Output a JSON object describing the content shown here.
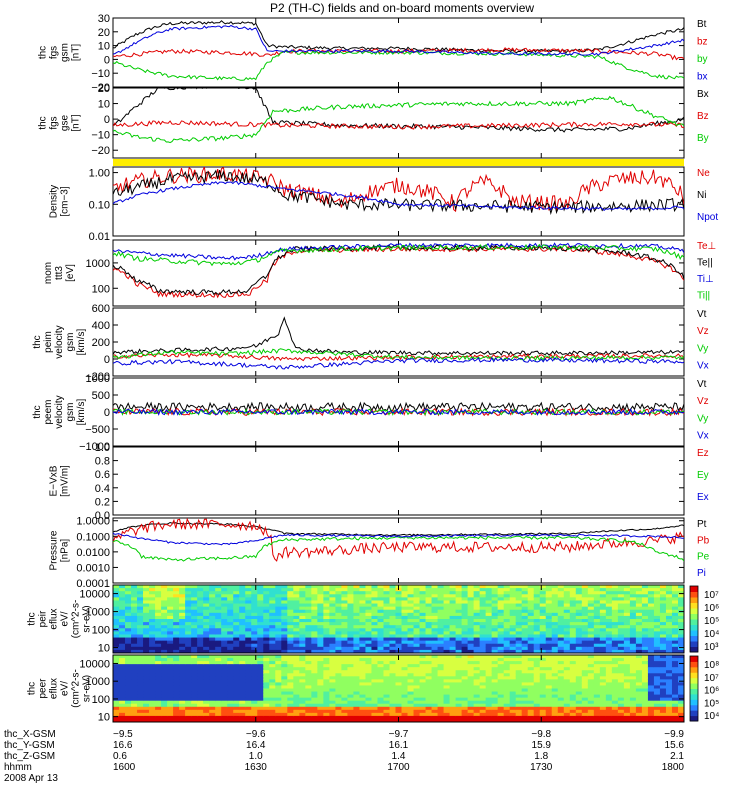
{
  "title": "P2 (TH-C) fields and on-board moments overview",
  "colors": {
    "black": "#000000",
    "red": "#e00000",
    "green": "#00cc00",
    "blue": "#0000dd",
    "yellow": "#ffee00"
  },
  "chart_data": [
    {
      "type": "line",
      "ylabel_lines": [
        "thc",
        "fgs",
        "gsm",
        "[nT]"
      ],
      "yticks": [
        "30",
        "20",
        "10",
        "0",
        "−10",
        "−20"
      ],
      "ylim": [
        -20,
        30
      ],
      "legend": [
        {
          "name": "Bt",
          "color": "#000000"
        },
        {
          "name": "bz",
          "color": "#e00000"
        },
        {
          "name": "by",
          "color": "#00cc00"
        },
        {
          "name": "bx",
          "color": "#0000dd"
        }
      ],
      "series": [
        {
          "name": "Bt",
          "color": "#000000",
          "x": [
            0,
            0.04,
            0.07,
            0.1,
            0.2,
            0.25,
            0.27,
            0.3,
            0.4,
            0.5,
            0.6,
            0.7,
            0.8,
            0.85,
            0.9,
            0.95,
            1
          ],
          "y": [
            8,
            18,
            23,
            26,
            27,
            26,
            10,
            9,
            8,
            8,
            7,
            6,
            6,
            7,
            12,
            18,
            22
          ],
          "noise": 1.2
        },
        {
          "name": "bz",
          "color": "#e00000",
          "x": [
            0,
            0.05,
            0.1,
            0.2,
            0.25,
            0.27,
            0.3,
            0.5,
            0.7,
            0.85,
            0.95,
            1
          ],
          "y": [
            2,
            4,
            6,
            5,
            4,
            3,
            6,
            6,
            7,
            6,
            4,
            0
          ],
          "noise": 1.5
        },
        {
          "name": "by",
          "color": "#00cc00",
          "x": [
            0,
            0.05,
            0.1,
            0.2,
            0.25,
            0.27,
            0.3,
            0.5,
            0.7,
            0.85,
            0.9,
            0.95,
            1
          ],
          "y": [
            -2,
            -8,
            -12,
            -14,
            -14,
            -2,
            5,
            5,
            4,
            2,
            -6,
            -12,
            -14
          ],
          "noise": 1.3
        },
        {
          "name": "bx",
          "color": "#0000dd",
          "x": [
            0,
            0.04,
            0.07,
            0.1,
            0.2,
            0.25,
            0.27,
            0.3,
            0.5,
            0.7,
            0.85,
            0.95,
            1
          ],
          "y": [
            3,
            12,
            18,
            22,
            24,
            22,
            6,
            6,
            6,
            4,
            4,
            10,
            14
          ],
          "noise": 1
        }
      ]
    },
    {
      "type": "line",
      "ylabel_lines": [
        "thc",
        "fgs",
        "gse",
        "[nT]"
      ],
      "yticks": [
        "20",
        "10",
        "0",
        "−10",
        "−20"
      ],
      "ylim": [
        -25,
        20
      ],
      "legend": [
        {
          "name": "Bx",
          "color": "#000000"
        },
        {
          "name": "Bz",
          "color": "#e00000"
        },
        {
          "name": "By",
          "color": "#00cc00"
        }
      ],
      "series": [
        {
          "name": "Bx",
          "color": "#000000",
          "x": [
            0,
            0.04,
            0.08,
            0.2,
            0.25,
            0.28,
            0.4,
            0.6,
            0.8,
            0.9,
            1
          ],
          "y": [
            -5,
            8,
            20,
            22,
            20,
            -2,
            -4,
            -5,
            -7,
            -6,
            0
          ],
          "noise": 1.5
        },
        {
          "name": "Bz",
          "color": "#e00000",
          "x": [
            0,
            0.1,
            0.2,
            0.3,
            0.5,
            0.7,
            0.9,
            1
          ],
          "y": [
            -4,
            -2,
            -3,
            -4,
            -5,
            -4,
            -3,
            -4
          ],
          "noise": 1.5
        },
        {
          "name": "By",
          "color": "#00cc00",
          "x": [
            0,
            0.05,
            0.1,
            0.2,
            0.25,
            0.28,
            0.4,
            0.6,
            0.8,
            0.87,
            0.95,
            1
          ],
          "y": [
            -8,
            -12,
            -14,
            -12,
            -10,
            5,
            8,
            10,
            10,
            14,
            2,
            -5
          ],
          "noise": 1.5
        }
      ]
    },
    {
      "type": "line",
      "yscale": "log",
      "ylabel_lines": [
        "Density",
        "[cm−3]"
      ],
      "yticks": [
        "1.00",
        "0.10",
        "0.01"
      ],
      "ylim": [
        0.01,
        1.5
      ],
      "legend": [
        {
          "name": "Ne",
          "color": "#e00000"
        },
        {
          "name": "Ni",
          "color": "#000000"
        },
        {
          "name": "Npot",
          "color": "#0000dd"
        }
      ],
      "series": [
        {
          "name": "Ne",
          "color": "#e00000",
          "x": [
            0,
            0.06,
            0.1,
            0.2,
            0.27,
            0.3,
            0.4,
            0.5,
            0.6,
            0.65,
            0.7,
            0.8,
            0.88,
            0.95,
            1
          ],
          "y": [
            0.3,
            0.6,
            0.8,
            0.9,
            0.6,
            0.3,
            0.1,
            0.4,
            0.1,
            0.5,
            0.12,
            0.1,
            0.6,
            0.7,
            0.15
          ],
          "noise": 0.25
        },
        {
          "name": "Ni",
          "color": "#000000",
          "x": [
            0,
            0.06,
            0.1,
            0.2,
            0.27,
            0.3,
            0.4,
            0.6,
            0.8,
            1
          ],
          "y": [
            0.2,
            0.4,
            0.6,
            0.8,
            0.5,
            0.2,
            0.1,
            0.09,
            0.08,
            0.1
          ],
          "noise": 0.2
        },
        {
          "name": "Npot",
          "color": "#0000dd",
          "x": [
            0,
            0.1,
            0.2,
            0.3,
            0.5,
            0.7,
            0.9,
            1
          ],
          "y": [
            0.1,
            0.3,
            0.5,
            0.3,
            0.1,
            0.08,
            0.07,
            0.08
          ],
          "noise": 0.05
        }
      ]
    },
    {
      "type": "line",
      "yscale": "log",
      "ylabel_lines": [
        "mom",
        "ttt3",
        "[eV]"
      ],
      "yticks": [
        "1000",
        "100"
      ],
      "ylim": [
        20,
        8000
      ],
      "legend": [
        {
          "name": "Te⊥",
          "color": "#e00000"
        },
        {
          "name": "Te||",
          "color": "#000000"
        },
        {
          "name": "Ti⊥",
          "color": "#0000dd"
        },
        {
          "name": "Ti||",
          "color": "#00cc00"
        }
      ],
      "series": [
        {
          "name": "Te⊥",
          "color": "#e00000",
          "x": [
            0,
            0.04,
            0.08,
            0.15,
            0.2,
            0.24,
            0.27,
            0.32,
            0.5,
            0.8,
            0.9,
            1
          ],
          "y": [
            600,
            150,
            60,
            55,
            55,
            60,
            200,
            3000,
            3500,
            3500,
            2000,
            200
          ],
          "noise": 0.1
        },
        {
          "name": "Te||",
          "color": "#000000",
          "x": [
            0,
            0.04,
            0.08,
            0.15,
            0.2,
            0.24,
            0.27,
            0.32,
            0.5,
            0.8,
            0.9,
            1
          ],
          "y": [
            800,
            200,
            80,
            70,
            70,
            80,
            300,
            3500,
            4000,
            3800,
            2500,
            250
          ],
          "noise": 0.1
        },
        {
          "name": "Ti⊥",
          "color": "#0000dd",
          "x": [
            0,
            0.04,
            0.1,
            0.2,
            0.25,
            0.3,
            0.5,
            0.8,
            0.95,
            1
          ],
          "y": [
            3000,
            2500,
            2000,
            1500,
            1800,
            3500,
            5000,
            5000,
            4500,
            3000
          ],
          "noise": 0.08
        },
        {
          "name": "Ti||",
          "color": "#00cc00",
          "x": [
            0,
            0.04,
            0.1,
            0.2,
            0.25,
            0.3,
            0.5,
            0.8,
            0.95,
            1
          ],
          "y": [
            2500,
            1500,
            1200,
            900,
            1200,
            3000,
            4000,
            4200,
            3500,
            1500
          ],
          "noise": 0.1
        }
      ]
    },
    {
      "type": "line",
      "ylabel_lines": [
        "thc",
        "peim",
        "velocity",
        "gsm",
        "[km/s]"
      ],
      "yticks": [
        "600",
        "400",
        "200",
        "0",
        "−200"
      ],
      "ylim": [
        -200,
        600
      ],
      "legend": [
        {
          "name": "Vt",
          "color": "#000000"
        },
        {
          "name": "Vz",
          "color": "#e00000"
        },
        {
          "name": "Vy",
          "color": "#00cc00"
        },
        {
          "name": "Vx",
          "color": "#0000dd"
        }
      ],
      "series": [
        {
          "name": "Vt",
          "color": "#000000",
          "x": [
            0,
            0.1,
            0.2,
            0.25,
            0.29,
            0.3,
            0.32,
            0.4,
            0.6,
            0.8,
            1
          ],
          "y": [
            80,
            100,
            120,
            150,
            300,
            500,
            120,
            80,
            70,
            70,
            80
          ],
          "noise": 25
        },
        {
          "name": "Vz",
          "color": "#e00000",
          "x": [
            0,
            0.1,
            0.2,
            0.3,
            0.5,
            0.7,
            1
          ],
          "y": [
            30,
            50,
            40,
            0,
            20,
            30,
            40
          ],
          "noise": 25
        },
        {
          "name": "Vy",
          "color": "#00cc00",
          "x": [
            0,
            0.1,
            0.2,
            0.3,
            0.5,
            0.7,
            1
          ],
          "y": [
            20,
            80,
            60,
            100,
            20,
            10,
            20
          ],
          "noise": 25
        },
        {
          "name": "Vx",
          "color": "#0000dd",
          "x": [
            0,
            0.1,
            0.2,
            0.3,
            0.5,
            0.7,
            1
          ],
          "y": [
            -50,
            -30,
            -60,
            -100,
            -20,
            -10,
            -30
          ],
          "noise": 25
        }
      ]
    },
    {
      "type": "line",
      "ylabel_lines": [
        "thc",
        "peem",
        "velocity",
        "gsm",
        "[km/s]"
      ],
      "yticks": [
        "1000",
        "500",
        "0",
        "−500",
        "−1000"
      ],
      "ylim": [
        -1000,
        1000
      ],
      "legend": [
        {
          "name": "Vt",
          "color": "#000000"
        },
        {
          "name": "Vz",
          "color": "#e00000"
        },
        {
          "name": "Vy",
          "color": "#00cc00"
        },
        {
          "name": "Vx",
          "color": "#0000dd"
        }
      ],
      "series": [
        {
          "name": "Vt",
          "color": "#000000",
          "x": [
            0,
            0.5,
            1
          ],
          "y": [
            150,
            150,
            150
          ],
          "noise": 120
        },
        {
          "name": "Vz",
          "color": "#e00000",
          "x": [
            0,
            0.5,
            1
          ],
          "y": [
            0,
            0,
            0
          ],
          "noise": 100
        },
        {
          "name": "Vy",
          "color": "#00cc00",
          "x": [
            0,
            0.5,
            1
          ],
          "y": [
            0,
            0,
            0
          ],
          "noise": 80
        },
        {
          "name": "Vx",
          "color": "#0000dd",
          "x": [
            0,
            0.5,
            1
          ],
          "y": [
            0,
            0,
            0
          ],
          "noise": 80
        }
      ]
    },
    {
      "type": "line",
      "ylabel_lines": [
        "E−VxB",
        "[mV/m]"
      ],
      "yticks": [
        "1.0",
        "0.8",
        "0.6",
        "0.4",
        "0.2",
        "0.0"
      ],
      "ylim": [
        0,
        1
      ],
      "legend": [
        {
          "name": "Ez",
          "color": "#e00000"
        },
        {
          "name": "Ey",
          "color": "#00cc00"
        },
        {
          "name": "Ex",
          "color": "#0000dd"
        }
      ],
      "series": []
    },
    {
      "type": "line",
      "yscale": "log",
      "ylabel_lines": [
        "Pressure",
        "[nPa]"
      ],
      "yticks": [
        "1.0000",
        "0.1000",
        "0.0100",
        "0.0010",
        "0.0001"
      ],
      "ylim": [
        0.0001,
        1.5
      ],
      "legend": [
        {
          "name": "Pt",
          "color": "#000000"
        },
        {
          "name": "Pb",
          "color": "#e00000"
        },
        {
          "name": "Pe",
          "color": "#00cc00"
        },
        {
          "name": "Pi",
          "color": "#0000dd"
        }
      ],
      "series": [
        {
          "name": "Pt",
          "color": "#000000",
          "x": [
            0,
            0.05,
            0.1,
            0.2,
            0.25,
            0.3,
            0.5,
            0.8,
            0.95,
            1
          ],
          "y": [
            0.2,
            0.5,
            0.7,
            0.6,
            0.4,
            0.15,
            0.12,
            0.15,
            0.3,
            0.5
          ],
          "noise": 0.05
        },
        {
          "name": "Pb",
          "color": "#e00000",
          "x": [
            0,
            0.05,
            0.1,
            0.2,
            0.25,
            0.28,
            0.3,
            0.35,
            0.5,
            0.8,
            0.95,
            1
          ],
          "y": [
            0.03,
            0.3,
            0.6,
            0.6,
            0.5,
            0.003,
            0.01,
            0.01,
            0.02,
            0.02,
            0.05,
            0.1
          ],
          "noise": 0.35
        },
        {
          "name": "Pe",
          "color": "#00cc00",
          "x": [
            0,
            0.05,
            0.1,
            0.2,
            0.25,
            0.3,
            0.5,
            0.8,
            0.9,
            0.95,
            1
          ],
          "y": [
            0.05,
            0.005,
            0.003,
            0.004,
            0.005,
            0.06,
            0.08,
            0.08,
            0.05,
            0.01,
            0.003
          ],
          "noise": 0.1
        },
        {
          "name": "Pi",
          "color": "#0000dd",
          "x": [
            0,
            0.05,
            0.1,
            0.2,
            0.25,
            0.3,
            0.5,
            0.8,
            0.95,
            1
          ],
          "y": [
            0.15,
            0.07,
            0.04,
            0.03,
            0.05,
            0.12,
            0.1,
            0.12,
            0.1,
            0.08
          ],
          "noise": 0.06
        }
      ]
    },
    {
      "type": "heatmap",
      "yscale": "log",
      "ylabel_lines": [
        "thc",
        "peir",
        "eflux",
        "eV/",
        "(cm^2-s-",
        "sr-eV)"
      ],
      "yticks": [
        "10000",
        "1000",
        "100",
        "10"
      ],
      "ylim": [
        5,
        30000
      ],
      "colorbar_ticks": [
        "10⁷",
        "10⁶",
        "10⁵",
        "10⁴",
        "10³"
      ]
    },
    {
      "type": "heatmap",
      "yscale": "log",
      "ylabel_lines": [
        "thc",
        "peer",
        "eflux",
        "eV/",
        "(cm^2-s-",
        "sr-eV)"
      ],
      "yticks": [
        "10000",
        "1000",
        "100",
        "10"
      ],
      "ylim": [
        5,
        30000
      ],
      "colorbar_ticks": [
        "10⁸",
        "10⁷",
        "10⁶",
        "10⁵",
        "10⁴"
      ]
    }
  ],
  "xaxis": {
    "rows": [
      {
        "label": "thc_X-GSM",
        "values": [
          "−9.5",
          "−9.6",
          "−9.7",
          "−9.8",
          "−9.9"
        ]
      },
      {
        "label": "thc_Y-GSM",
        "values": [
          "16.6",
          "16.4",
          "16.1",
          "15.9",
          "15.6"
        ]
      },
      {
        "label": "thc_Z-GSM",
        "values": [
          "0.6",
          "1.0",
          "1.4",
          "1.8",
          "2.1"
        ]
      },
      {
        "label": "hhmm",
        "values": [
          "1600",
          "1630",
          "1700",
          "1730",
          "1800"
        ]
      }
    ],
    "date": "2008 Apr 13"
  }
}
